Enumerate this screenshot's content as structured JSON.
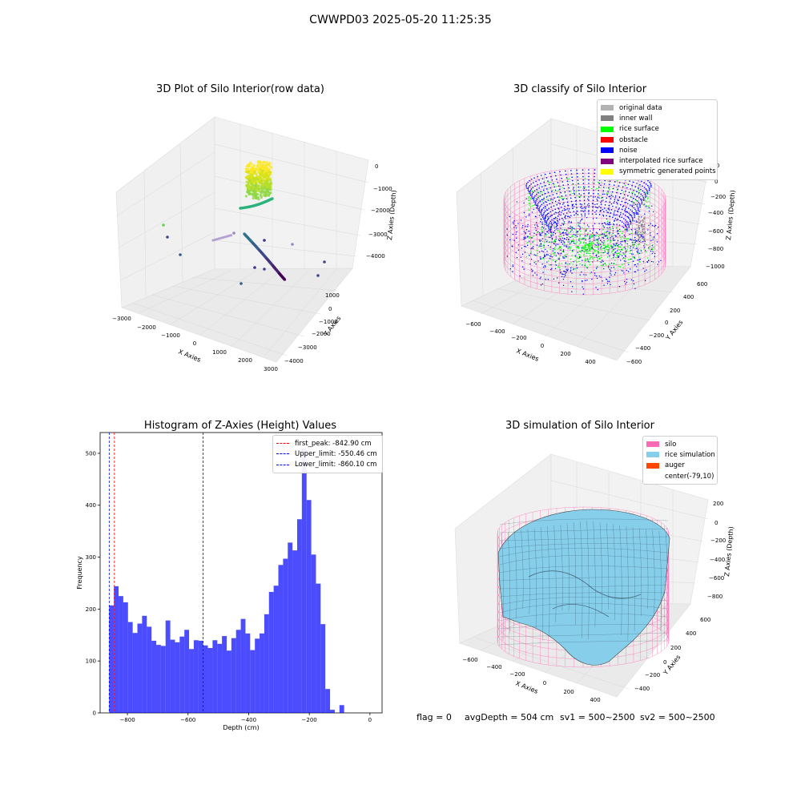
{
  "figure": {
    "title": "CWWPD03 2025-05-20 11:25:35"
  },
  "panel_titles": {
    "raw": "3D Plot of Silo Interior(row data)",
    "classify": "3D classify of Silo Interior",
    "hist": "Histogram of Z-Axies (Height) Values",
    "sim": "3D simulation of Silo Interior"
  },
  "footer": {
    "flag": "flag = 0",
    "avg": "avgDepth = 504 cm",
    "sv1": "sv1 = 500~2500",
    "sv2": "sv2 = 500~2500"
  },
  "colors": {
    "hist_bar": "#0000ff",
    "first_peak_line": "#ff0000",
    "limit_lines": "#0000ff",
    "silo": "#ff69b4",
    "rice": "#87ceeb"
  },
  "chart_data": [
    {
      "type": "scatter",
      "panel": "raw",
      "title": "3D Plot of Silo Interior(row data)",
      "xlabel": "X Axies",
      "ylabel": "Y Axies",
      "zlabel": "Z Axies (Depth)",
      "xticks": [
        "−3000",
        "−2000",
        "−1000",
        "0",
        "1000",
        "2000",
        "3000"
      ],
      "yticks": [
        "−4000",
        "−3000",
        "−2000",
        "−1000",
        "0",
        "1000"
      ],
      "zticks": [
        "0",
        "−1000",
        "−2000",
        "−3000",
        "−4000"
      ],
      "xlim": [
        -3000,
        3000
      ],
      "ylim": [
        -4000,
        1000
      ],
      "zlim": [
        -4500,
        0
      ],
      "colormap": "viridis (depth)"
    },
    {
      "type": "scatter",
      "panel": "classify",
      "title": "3D classify of Silo Interior",
      "xlabel": "X Axies",
      "ylabel": "Y Axies",
      "zlabel": "Z Axies (Depth)",
      "xticks": [
        "−600",
        "−400",
        "−200",
        "0",
        "200",
        "400"
      ],
      "yticks": [
        "−600",
        "−400",
        "−200",
        "0",
        "200",
        "400",
        "600"
      ],
      "zticks": [
        "200",
        "0",
        "−200",
        "−400",
        "−600",
        "−800",
        "−1000"
      ],
      "legend": [
        {
          "label": "original data",
          "color": "#b3b3b3"
        },
        {
          "label": "inner wall",
          "color": "#808080"
        },
        {
          "label": "rice surface",
          "color": "#00ff00"
        },
        {
          "label": "obstacle",
          "color": "#ff0000"
        },
        {
          "label": "noise",
          "color": "#0000ff"
        },
        {
          "label": "interpolated rice surface",
          "color": "#800080"
        },
        {
          "label": "symmetric generated points",
          "color": "#ffff00"
        }
      ]
    },
    {
      "type": "bar",
      "panel": "hist",
      "title": "Histogram of Z-Axies (Height) Values",
      "xlabel": "Depth (cm)",
      "ylabel": "Frequency",
      "xlim": [
        -890,
        40
      ],
      "ylim": [
        0,
        540
      ],
      "xticks": [
        -800,
        -600,
        -400,
        -200,
        0
      ],
      "xtick_labels": [
        "−800",
        "−600",
        "−400",
        "−200",
        "0"
      ],
      "yticks": [
        0,
        100,
        200,
        300,
        400,
        500
      ],
      "yticks_labels": [
        "0",
        "100",
        "200",
        "300",
        "400",
        "500"
      ],
      "bin_start": -860.1,
      "bin_width": 15.5,
      "values": [
        207,
        244,
        225,
        213,
        175,
        154,
        172,
        187,
        166,
        139,
        131,
        129,
        178,
        141,
        136,
        147,
        160,
        123,
        140,
        139,
        130,
        125,
        140,
        133,
        148,
        120,
        144,
        160,
        181,
        153,
        121,
        143,
        153,
        190,
        233,
        245,
        285,
        297,
        328,
        313,
        373,
        510,
        410,
        305,
        249,
        171,
        46,
        6,
        0,
        15
      ],
      "lines": [
        {
          "label": "first_peak: -842.90 cm",
          "x": -842.9,
          "color": "#ff0000"
        },
        {
          "label": "Upper_limit: -550.46 cm",
          "x": -550.46,
          "color": "#0000ff"
        },
        {
          "label": "Lower_limit: -860.10 cm",
          "x": -860.1,
          "color": "#0000ff"
        }
      ]
    },
    {
      "type": "area",
      "panel": "sim",
      "title": "3D simulation of Silo Interior",
      "xlabel": "X Axies",
      "ylabel": "Y Axies",
      "zlabel": "Z Axies (Depth)",
      "xticks": [
        "−600",
        "−400",
        "−200",
        "0",
        "200",
        "400"
      ],
      "yticks": [
        "−400",
        "−200",
        "0",
        "200",
        "400",
        "600"
      ],
      "zticks": [
        "200",
        "0",
        "−200",
        "−400",
        "−600",
        "−800"
      ],
      "legend": [
        {
          "label": "silo",
          "color": "#ff69b4"
        },
        {
          "label": "rice simulation",
          "color": "#87ceeb"
        },
        {
          "label": "auger",
          "color": "#ff4500"
        },
        {
          "label": "center(-79,10)",
          "color": ""
        }
      ]
    }
  ]
}
